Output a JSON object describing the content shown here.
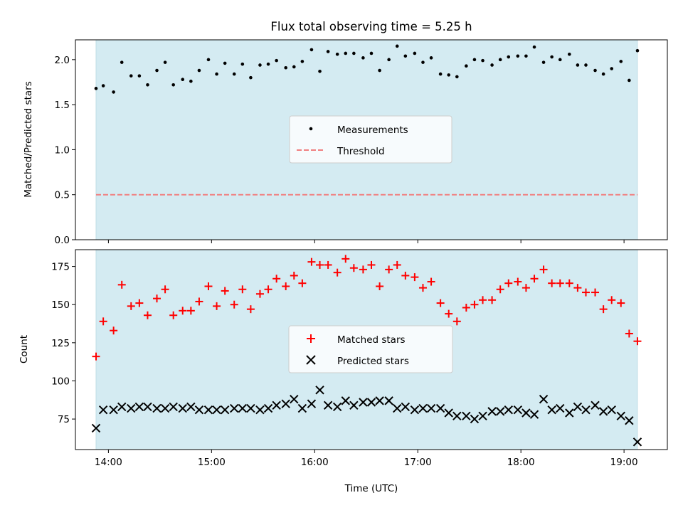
{
  "chart_data": {
    "title": "Flux total observing time = 5.25 h",
    "xlabel": "Time (UTC)",
    "x_unit": "hours UTC",
    "xlim": [
      13.68,
      19.42
    ],
    "xticks": [
      14,
      15,
      16,
      17,
      18,
      19
    ],
    "xtick_labels": [
      "14:00",
      "15:00",
      "16:00",
      "17:00",
      "18:00",
      "19:00"
    ],
    "observing_span": [
      13.88,
      19.13
    ],
    "shade_color": "#d4ebf2",
    "x": [
      13.88,
      13.95,
      14.05,
      14.13,
      14.22,
      14.3,
      14.38,
      14.47,
      14.55,
      14.63,
      14.72,
      14.8,
      14.88,
      14.97,
      15.05,
      15.13,
      15.22,
      15.3,
      15.38,
      15.47,
      15.55,
      15.63,
      15.72,
      15.8,
      15.88,
      15.97,
      16.05,
      16.13,
      16.22,
      16.3,
      16.38,
      16.47,
      16.55,
      16.63,
      16.72,
      16.8,
      16.88,
      16.97,
      17.05,
      17.13,
      17.22,
      17.3,
      17.38,
      17.47,
      17.55,
      17.63,
      17.72,
      17.8,
      17.88,
      17.97,
      18.05,
      18.13,
      18.22,
      18.3,
      18.38,
      18.47,
      18.55,
      18.63,
      18.72,
      18.8,
      18.88,
      18.97,
      19.05,
      19.13
    ],
    "panels": [
      {
        "ylabel": "Matched/Predicted stars",
        "ylim": [
          0,
          2.22
        ],
        "yticks": [
          0.0,
          0.5,
          1.0,
          1.5,
          2.0
        ],
        "ytick_labels": [
          "0.0",
          "0.5",
          "1.0",
          "1.5",
          "2.0"
        ],
        "legend_position": "center",
        "series": [
          {
            "name": "Measurements",
            "type": "scatter",
            "marker": "dot",
            "color": "#000000",
            "values": [
              1.68,
              1.71,
              1.64,
              1.97,
              1.82,
              1.82,
              1.72,
              1.88,
              1.97,
              1.72,
              1.78,
              1.76,
              1.88,
              2.0,
              1.84,
              1.96,
              1.84,
              1.95,
              1.8,
              1.94,
              1.95,
              1.99,
              1.91,
              1.92,
              1.98,
              2.11,
              1.87,
              2.09,
              2.06,
              2.07,
              2.07,
              2.02,
              2.07,
              1.88,
              2.0,
              2.15,
              2.04,
              2.07,
              1.97,
              2.02,
              1.84,
              1.83,
              1.81,
              1.93,
              2.0,
              1.99,
              1.94,
              2.0,
              2.03,
              2.04,
              2.04,
              2.14,
              1.97,
              2.03,
              2.0,
              2.06,
              1.94,
              1.94,
              1.88,
              1.84,
              1.9,
              1.98,
              1.77,
              2.1
            ]
          },
          {
            "name": "Threshold",
            "type": "line",
            "style": "dashed",
            "color": "#f08080",
            "value": 0.5
          }
        ]
      },
      {
        "ylabel": "Count",
        "ylim": [
          55,
          186
        ],
        "yticks": [
          75,
          100,
          125,
          150,
          175
        ],
        "ytick_labels": [
          "75",
          "100",
          "125",
          "150",
          "175"
        ],
        "legend_position": "center",
        "series": [
          {
            "name": "Matched stars",
            "type": "scatter",
            "marker": "plus",
            "color": "#ff0000",
            "values": [
              116,
              139,
              133,
              163,
              149,
              151,
              143,
              154,
              160,
              143,
              146,
              146,
              152,
              162,
              149,
              159,
              150,
              160,
              147,
              157,
              160,
              167,
              162,
              169,
              164,
              178,
              176,
              176,
              171,
              180,
              174,
              173,
              176,
              162,
              173,
              176,
              169,
              168,
              161,
              165,
              151,
              144,
              139,
              148,
              150,
              153,
              153,
              160,
              164,
              165,
              161,
              167,
              173,
              164,
              164,
              164,
              161,
              158,
              158,
              147,
              153,
              151,
              131,
              126
            ]
          },
          {
            "name": "Predicted stars",
            "type": "scatter",
            "marker": "x",
            "color": "#000000",
            "values": [
              69,
              81,
              81,
              83,
              82,
              83,
              83,
              82,
              82,
              83,
              82,
              83,
              81,
              81,
              81,
              81,
              82,
              82,
              82,
              81,
              82,
              84,
              85,
              88,
              82,
              85,
              94,
              84,
              83,
              87,
              84,
              86,
              86,
              87,
              87,
              82,
              83,
              81,
              82,
              82,
              82,
              79,
              77,
              77,
              75,
              77,
              80,
              80,
              81,
              81,
              79,
              78,
              88,
              81,
              82,
              79,
              83,
              81,
              84,
              80,
              81,
              77,
              74,
              60
            ]
          }
        ]
      }
    ]
  }
}
